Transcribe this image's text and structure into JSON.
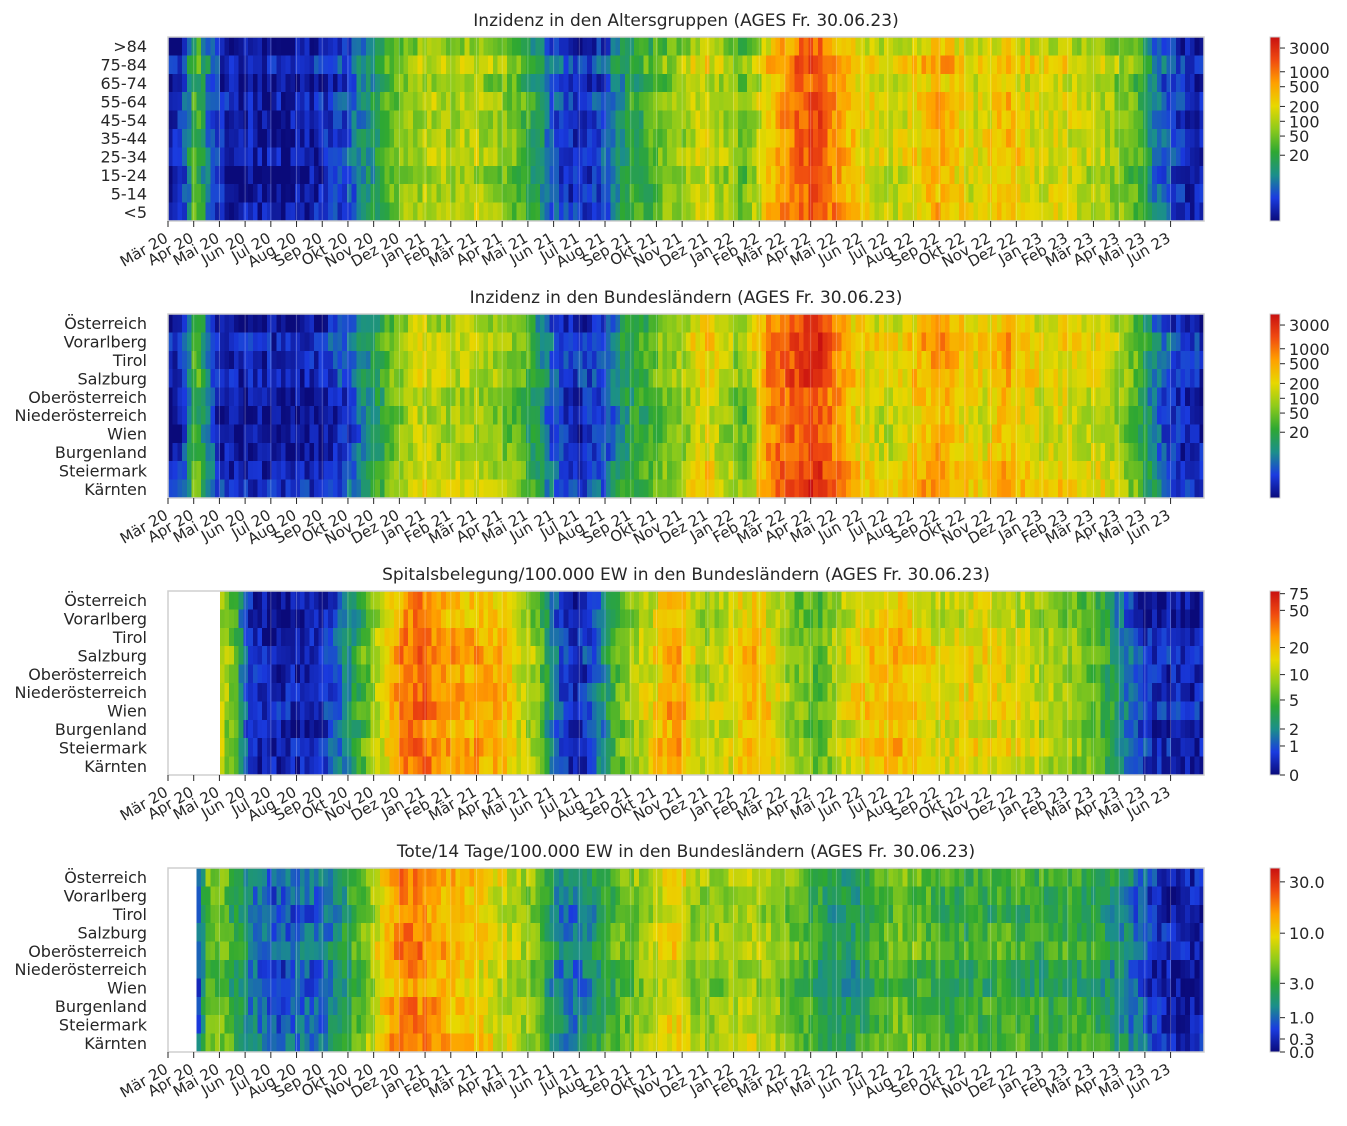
{
  "colormap": [
    "#0a0a7a",
    "#1a3be0",
    "#1b8f8a",
    "#2ea832",
    "#8fcb1a",
    "#e8d800",
    "#ffa000",
    "#f04a10",
    "#c81010"
  ],
  "month_labels": [
    "Mär 20",
    "Apr 20",
    "Mai 20",
    "Jun 20",
    "Jul 20",
    "Aug 20",
    "Sep 20",
    "Okt 20",
    "Nov 20",
    "Dez 20",
    "Jan 21",
    "Feb 21",
    "Mär 21",
    "Apr 21",
    "Mai 21",
    "Jun 21",
    "Jul 21",
    "Aug 21",
    "Sep 21",
    "Okt 21",
    "Nov 21",
    "Dez 21",
    "Jan 22",
    "Feb 22",
    "Mär 22",
    "Apr 22",
    "Mai 22",
    "Jun 22",
    "Jul 22",
    "Aug 22",
    "Sep 22",
    "Okt 22",
    "Nov 22",
    "Dez 22",
    "Jan 23",
    "Feb 23",
    "Mär 23",
    "Apr 23",
    "Mai 23",
    "Jun 23"
  ],
  "chart_data": [
    {
      "type": "heatmap",
      "title": "Inzidenz in den Altersgruppen (AGES Fr. 30.06.23)",
      "rows": [
        ">84",
        "75-84",
        "65-74",
        "55-64",
        "45-54",
        "35-44",
        "25-34",
        "15-24",
        "5-14",
        "<5"
      ],
      "colorbar_ticks": [
        "3000",
        "1000",
        "500",
        "200",
        "100",
        "50",
        "20"
      ],
      "colorbar_range": [
        0,
        5000
      ],
      "profile": [
        0.05,
        0.12,
        0.45,
        0.22,
        0.08,
        0.06,
        0.05,
        0.05,
        0.05,
        0.05,
        0.06,
        0.06,
        0.08,
        0.12,
        0.15,
        0.25,
        0.3,
        0.42,
        0.48,
        0.52,
        0.55,
        0.55,
        0.54,
        0.55,
        0.56,
        0.52,
        0.5,
        0.46,
        0.4,
        0.3,
        0.18,
        0.12,
        0.1,
        0.12,
        0.15,
        0.25,
        0.35,
        0.38,
        0.42,
        0.48,
        0.5,
        0.56,
        0.62,
        0.55,
        0.52,
        0.45,
        0.55,
        0.68,
        0.75,
        0.82,
        0.86,
        0.88,
        0.8,
        0.72,
        0.66,
        0.62,
        0.6,
        0.58,
        0.62,
        0.66,
        0.72,
        0.7,
        0.66,
        0.6,
        0.62,
        0.68,
        0.7,
        0.64,
        0.6,
        0.6,
        0.62,
        0.58,
        0.56,
        0.56,
        0.52,
        0.48,
        0.42,
        0.28,
        0.18,
        0.12,
        0.08,
        0.08
      ]
    },
    {
      "type": "heatmap",
      "title": "Inzidenz in den Bundesländern (AGES Fr. 30.06.23)",
      "rows": [
        "Österreich",
        "Vorarlberg",
        "Tirol",
        "Salzburg",
        "Oberösterreich",
        "Niederösterreich",
        "Wien",
        "Burgenland",
        "Steiermark",
        "Kärnten"
      ],
      "colorbar_ticks": [
        "3000",
        "1000",
        "500",
        "200",
        "100",
        "50",
        "20"
      ],
      "colorbar_range": [
        0,
        5000
      ],
      "profile": [
        0.05,
        0.12,
        0.45,
        0.22,
        0.08,
        0.06,
        0.05,
        0.05,
        0.05,
        0.05,
        0.06,
        0.06,
        0.08,
        0.12,
        0.15,
        0.25,
        0.3,
        0.42,
        0.5,
        0.58,
        0.6,
        0.56,
        0.54,
        0.55,
        0.56,
        0.52,
        0.5,
        0.46,
        0.4,
        0.3,
        0.18,
        0.12,
        0.1,
        0.12,
        0.15,
        0.25,
        0.35,
        0.38,
        0.42,
        0.48,
        0.5,
        0.58,
        0.66,
        0.58,
        0.52,
        0.45,
        0.6,
        0.78,
        0.84,
        0.88,
        0.9,
        0.9,
        0.82,
        0.72,
        0.66,
        0.62,
        0.6,
        0.6,
        0.66,
        0.7,
        0.74,
        0.72,
        0.68,
        0.62,
        0.64,
        0.7,
        0.72,
        0.66,
        0.62,
        0.62,
        0.64,
        0.62,
        0.6,
        0.6,
        0.56,
        0.5,
        0.42,
        0.28,
        0.18,
        0.12,
        0.08,
        0.08
      ]
    },
    {
      "type": "heatmap",
      "title": "Spitalsbelegung/100.000 EW in den Bundesländern (AGES Fr. 30.06.23)",
      "rows": [
        "Österreich",
        "Vorarlberg",
        "Tirol",
        "Salzburg",
        "Oberösterreich",
        "Niederösterreich",
        "Wien",
        "Burgenland",
        "Steiermark",
        "Kärnten"
      ],
      "colorbar_ticks": [
        "75",
        "50",
        "20",
        "10",
        "5",
        "2",
        "1",
        "0"
      ],
      "colorbar_range": [
        0,
        80
      ],
      "profile": [
        null,
        null,
        null,
        null,
        0.55,
        0.45,
        0.12,
        0.05,
        0.05,
        0.05,
        0.05,
        0.05,
        0.08,
        0.15,
        0.25,
        0.38,
        0.5,
        0.62,
        0.75,
        0.82,
        0.8,
        0.76,
        0.72,
        0.7,
        0.72,
        0.7,
        0.68,
        0.62,
        0.55,
        0.45,
        0.22,
        0.08,
        0.06,
        0.12,
        0.25,
        0.4,
        0.5,
        0.55,
        0.62,
        0.72,
        0.72,
        0.58,
        0.52,
        0.55,
        0.6,
        0.66,
        0.68,
        0.62,
        0.55,
        0.48,
        0.45,
        0.42,
        0.5,
        0.58,
        0.62,
        0.65,
        0.66,
        0.7,
        0.68,
        0.64,
        0.6,
        0.58,
        0.6,
        0.62,
        0.6,
        0.6,
        0.6,
        0.58,
        0.55,
        0.52,
        0.5,
        0.48,
        0.45,
        0.4,
        0.3,
        0.2,
        0.12,
        0.08,
        0.06,
        0.06,
        0.05,
        0.05
      ]
    },
    {
      "type": "heatmap",
      "title": "Tote/14 Tage/100.000 EW in den Bundesländern (AGES Fr. 30.06.23)",
      "rows": [
        "Österreich",
        "Vorarlberg",
        "Tirol",
        "Salzburg",
        "Oberösterreich",
        "Niederösterreich",
        "Wien",
        "Burgenland",
        "Steiermark",
        "Kärnten"
      ],
      "colorbar_ticks": [
        "30.0",
        "10.0",
        "3.0",
        "1.0",
        "0.3",
        "0.0"
      ],
      "colorbar_range": [
        0,
        40
      ],
      "profile": [
        null,
        null,
        0.08,
        0.45,
        0.45,
        0.35,
        0.25,
        0.2,
        0.15,
        0.15,
        0.18,
        0.18,
        0.2,
        0.25,
        0.35,
        0.45,
        0.55,
        0.7,
        0.78,
        0.8,
        0.78,
        0.74,
        0.7,
        0.68,
        0.66,
        0.62,
        0.58,
        0.55,
        0.5,
        0.42,
        0.3,
        0.22,
        0.22,
        0.28,
        0.35,
        0.42,
        0.45,
        0.5,
        0.55,
        0.62,
        0.64,
        0.52,
        0.5,
        0.5,
        0.54,
        0.55,
        0.55,
        0.52,
        0.5,
        0.45,
        0.4,
        0.35,
        0.3,
        0.3,
        0.32,
        0.38,
        0.42,
        0.45,
        0.45,
        0.42,
        0.4,
        0.38,
        0.36,
        0.36,
        0.38,
        0.4,
        0.4,
        0.38,
        0.36,
        0.36,
        0.38,
        0.38,
        0.36,
        0.34,
        0.3,
        0.25,
        0.18,
        0.12,
        0.08,
        0.06,
        0.06,
        0.05
      ]
    }
  ]
}
